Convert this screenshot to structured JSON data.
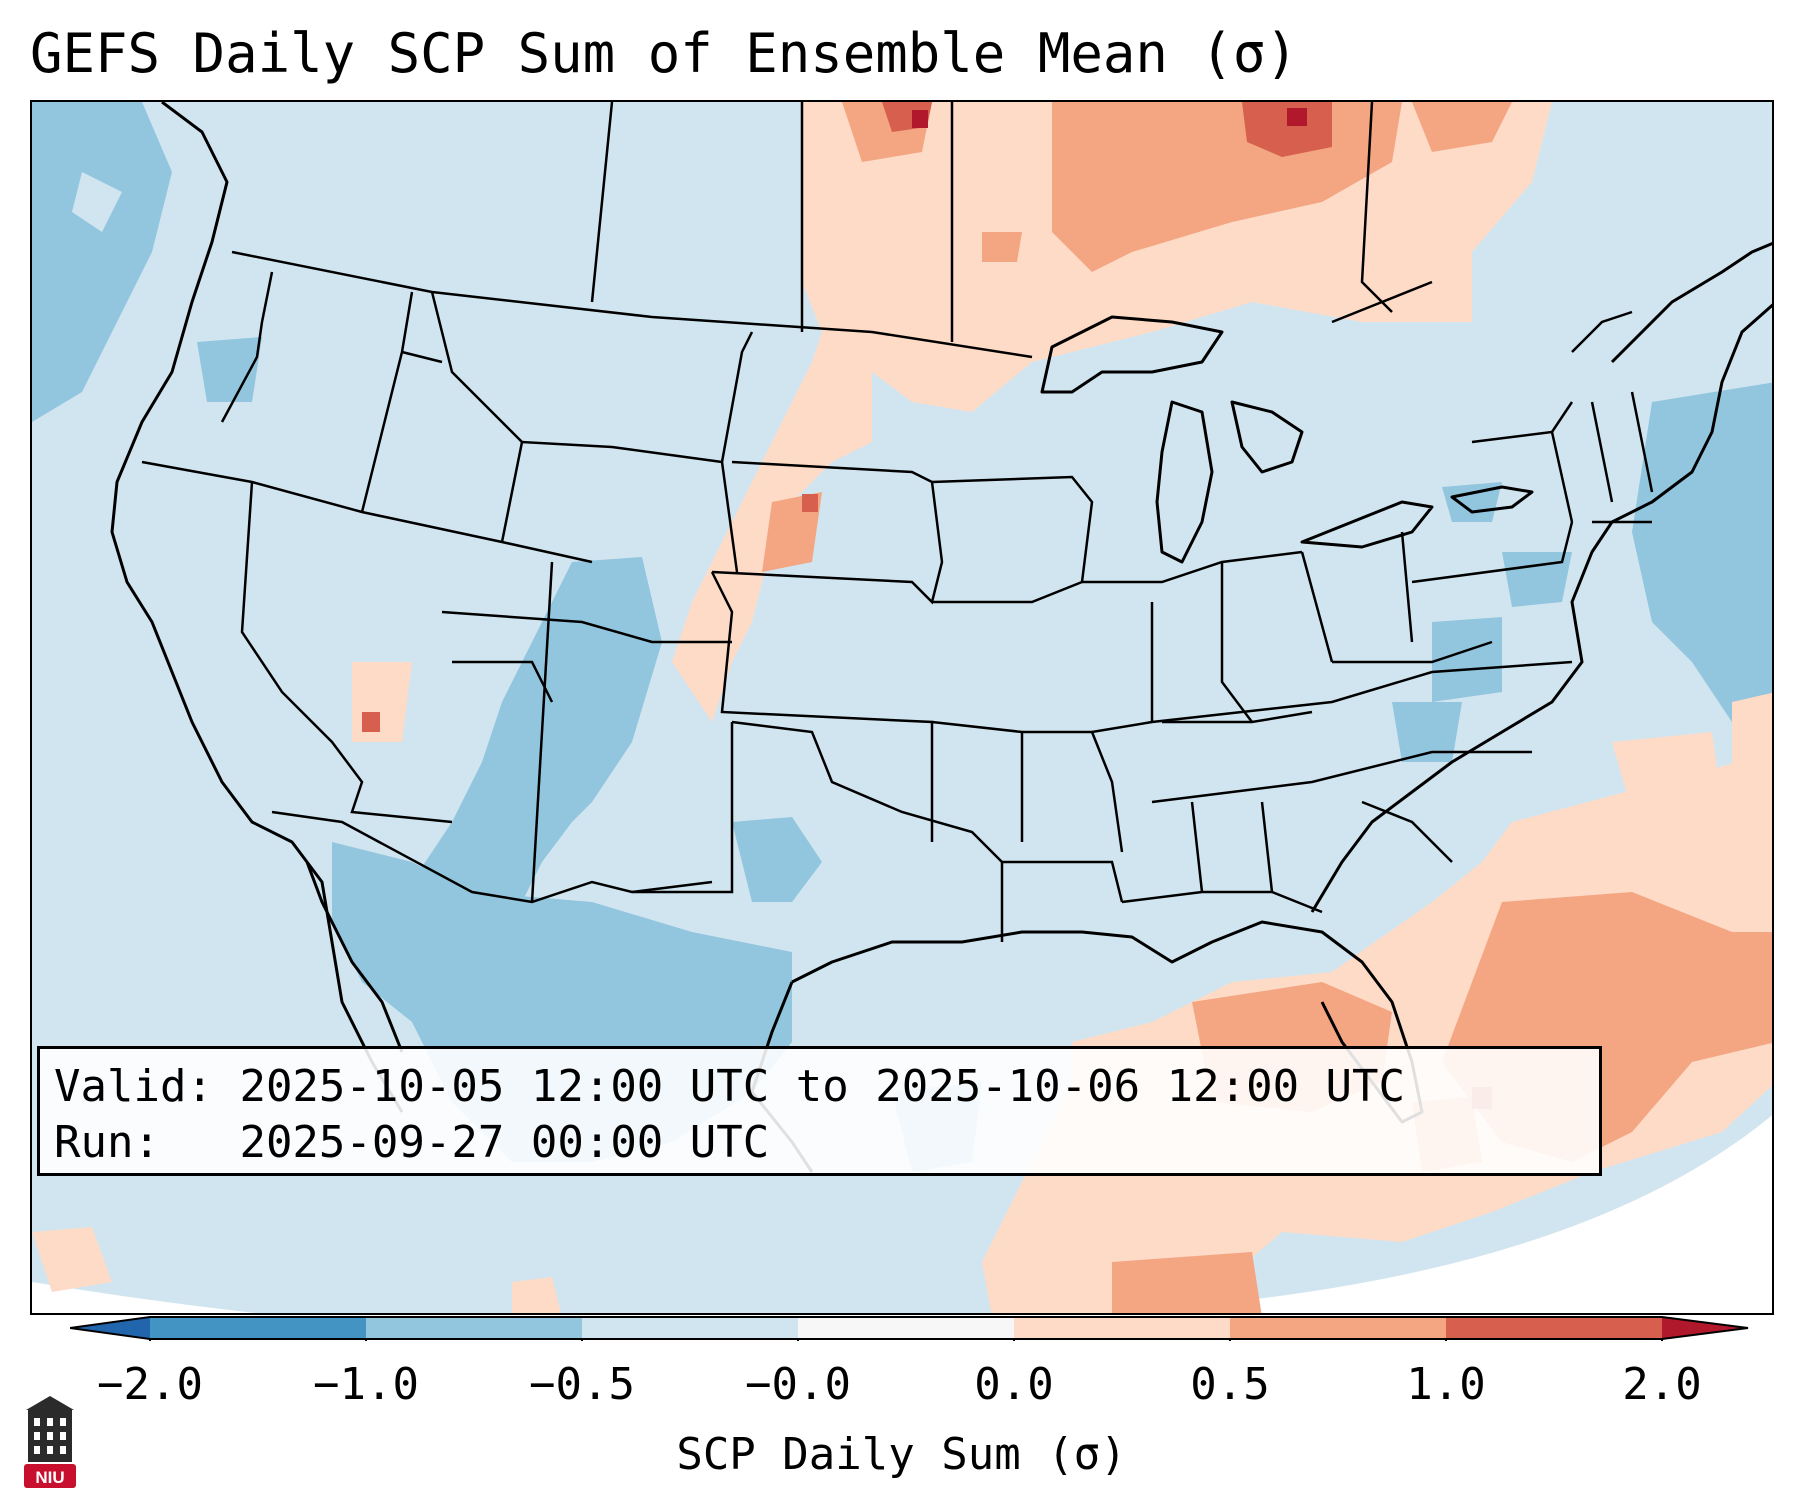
{
  "title": "GEFS Daily SCP Sum of Ensemble Mean (σ)",
  "info": {
    "valid_label": "Valid:",
    "valid_value": "2025-10-05 12:00 UTC to 2025-10-06 12:00 UTC",
    "run_label": "Run:",
    "run_value": "2025-09-27 00:00 UTC"
  },
  "colorbar": {
    "label": "SCP Daily Sum (σ)",
    "ticks": [
      "−2.0",
      "−1.0",
      "−0.5",
      "−0.0",
      "0.0",
      "0.5",
      "1.0",
      "2.0"
    ],
    "colors": {
      "under": "#2166ac",
      "bin_1": "#4393c3",
      "bin_2": "#92c5de",
      "bin_3": "#d1e5f0",
      "bin_4": "#f7f7f7",
      "bin_5": "#fddbc7",
      "bin_6": "#f4a582",
      "bin_7": "#d6604d",
      "over": "#b2182b"
    }
  },
  "logo": {
    "text": "NIU",
    "icon": "niu-tower-icon"
  }
}
